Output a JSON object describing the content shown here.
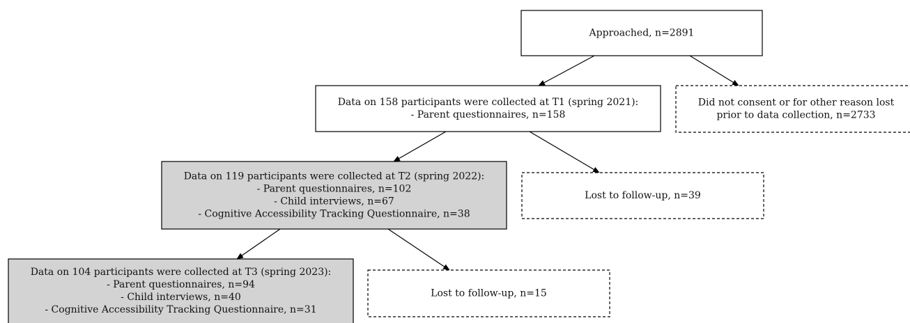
{
  "nodes": [
    {
      "lines": [
        "Approached, n=2891"
      ]
    },
    {
      "lines": [
        "Data on 158 participants were collected at T1 (spring 2021):",
        "- Parent questionnaires, n=158"
      ]
    },
    {
      "lines": [
        "Did not consent or for other reason lost",
        "prior to data collection, n=2733"
      ]
    },
    {
      "lines": [
        "Data on 119 participants were collected at T2 (spring 2022):",
        "- Parent questionnaires, n=102",
        "- Child interviews, n=67",
        "- Cognitive Accessibility Tracking Questionnaire, n=38"
      ]
    },
    {
      "lines": [
        "Lost to follow-up, n=39"
      ]
    },
    {
      "lines": [
        "Data on 104 participants were collected at T3 (spring 2023):",
        "- Parent questionnaires, n=94",
        "- Child interviews, n=40",
        "- Cognitive Accessibility Tracking Questionnaire, n=31"
      ]
    },
    {
      "lines": [
        "Lost to follow-up, n=15"
      ]
    }
  ]
}
